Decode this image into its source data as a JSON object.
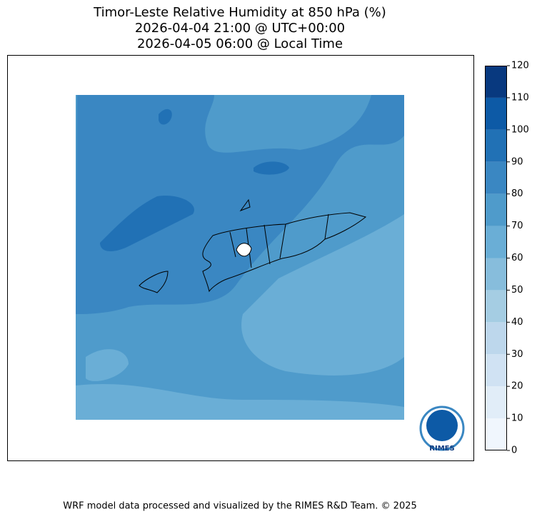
{
  "header": {
    "title": [
      "Timor-Leste Relative Humidity at 850 hPa (%)",
      "2026-04-04 21:00 @ UTC+00:00",
      "2026-04-05 06:00 @ Local Time"
    ]
  },
  "colorbar": {
    "lim": [
      0,
      120
    ],
    "ticks": [
      0,
      10,
      20,
      30,
      40,
      50,
      60,
      70,
      80,
      90,
      100,
      110,
      120
    ],
    "colors": [
      "#f0f6fd",
      "#e1edf8",
      "#d0e2f3",
      "#bdd7ec",
      "#a5cde3",
      "#87bddc",
      "#6aaed6",
      "#4f9bcb",
      "#3a87c2",
      "#2171b5",
      "#0d5aa6",
      "#08397f"
    ]
  },
  "logo": {
    "text": "RIMES"
  },
  "footer": "WRF model data processed and visualized by the RIMES R&D Team. © 2025"
}
